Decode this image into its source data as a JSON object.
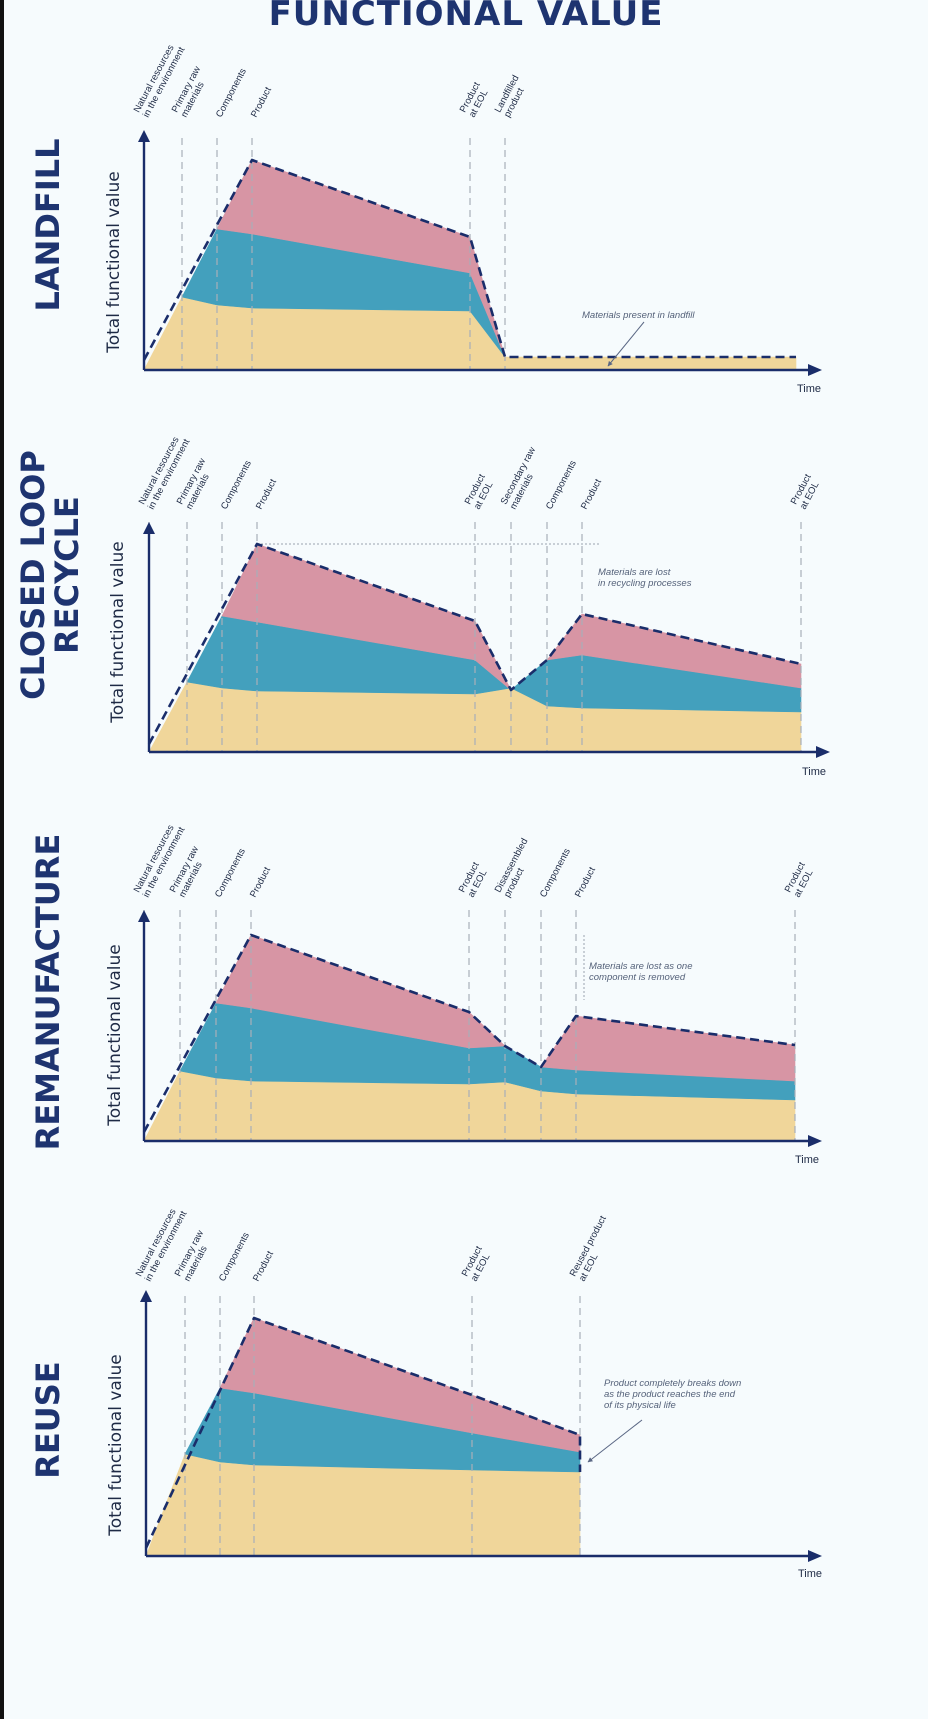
{
  "title": "FUNCTIONAL VALUE",
  "colors": {
    "raw": "#f0d69a",
    "components": "#43a0bd",
    "product": "#d795a4",
    "axis": "#1a2d6a",
    "title": "#1e3470"
  },
  "panels": [
    {
      "id": "landfill",
      "title_lines": [
        "LANDFILL"
      ],
      "ylabel": "Total functional value",
      "xlabel": "Time",
      "stages": [
        [
          "Natural resources",
          "in the environment"
        ],
        [
          "Primary raw",
          "materials"
        ],
        [
          "Components"
        ],
        [
          "Product"
        ],
        [
          "Product",
          "at EOL"
        ],
        [
          "Landfilled",
          "product"
        ]
      ],
      "note": [
        "Materials present in landfill"
      ]
    },
    {
      "id": "closed-loop-recycle",
      "title_lines": [
        "CLOSED LOOP",
        "RECYCLE"
      ],
      "ylabel": "Total functional value",
      "xlabel": "Time",
      "stages": [
        [
          "Natural resources",
          "in the environment"
        ],
        [
          "Primary raw",
          "materials"
        ],
        [
          "Components"
        ],
        [
          "Product"
        ],
        [
          "Product",
          "at EOL"
        ],
        [
          "Secondary raw",
          "materials"
        ],
        [
          "Components"
        ],
        [
          "Product"
        ],
        [
          "Product",
          "at EOL"
        ]
      ],
      "note": [
        "Materials are lost",
        "in recycling processes"
      ]
    },
    {
      "id": "remanufacture",
      "title_lines": [
        "REMANUFACTURE"
      ],
      "ylabel": "Total functional value",
      "xlabel": "Time",
      "stages": [
        [
          "Natural resources",
          "in the environment"
        ],
        [
          "Primary raw",
          "materials"
        ],
        [
          "Components"
        ],
        [
          "Product"
        ],
        [
          "Product",
          "at EOL"
        ],
        [
          "Disassembled",
          "product"
        ],
        [
          "Components"
        ],
        [
          "Product"
        ],
        [
          "Product",
          "at EOL"
        ]
      ],
      "note": [
        "Materials are lost as one",
        "component is removed"
      ]
    },
    {
      "id": "reuse",
      "title_lines": [
        "REUSE"
      ],
      "ylabel": "Total functional value",
      "xlabel": "Time",
      "stages": [
        [
          "Natural resources",
          "in the environment"
        ],
        [
          "Primary raw",
          "materials"
        ],
        [
          "Components"
        ],
        [
          "Product"
        ],
        [
          "Product",
          "at EOL"
        ],
        [
          "Reused product",
          "at EOL"
        ]
      ],
      "note": [
        "Product completely breaks down",
        "as the product reaches the end",
        "of its physical life"
      ]
    }
  ]
}
